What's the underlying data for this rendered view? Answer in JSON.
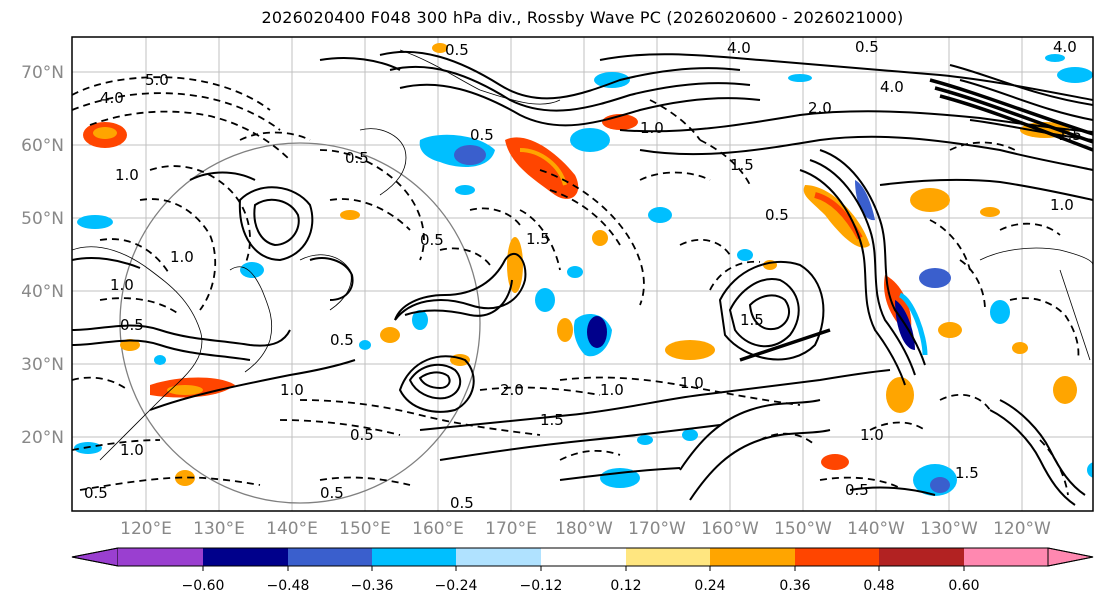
{
  "title": "2026020400 F048 300 hPa div., Rossby Wave PC (2026020600 - 2026021000)",
  "lat_labels": [
    "70°N",
    "60°N",
    "50°N",
    "40°N",
    "30°N",
    "20°N"
  ],
  "lon_labels": [
    "120°E",
    "130°E",
    "140°E",
    "150°E",
    "160°E",
    "170°E",
    "180°W",
    "170°W",
    "160°W",
    "150°W",
    "140°W",
    "130°W",
    "120°W"
  ],
  "colorbar": {
    "tick_labels": [
      "−0.60",
      "−0.48",
      "−0.36",
      "−0.24",
      "−0.12",
      "0.12",
      "0.24",
      "0.36",
      "0.48",
      "0.60"
    ],
    "colors": [
      "#9a3fd0",
      "#00008b",
      "#3a5fcd",
      "#00bfff",
      "#b0e2ff",
      "#ffffff",
      "#ffe680",
      "#ffa500",
      "#ff4500",
      "#b22222",
      "#ff88b0"
    ]
  },
  "contour_labels": [
    "0.5",
    "4.0",
    "0.5",
    "4.0",
    "4.0",
    "5.0",
    "4.0",
    "0.5",
    "1.0",
    "1.5",
    "0.5",
    "1.0",
    "1.0",
    "1.5",
    "2.0",
    "1.5",
    "1.0",
    "0.5",
    "0.5",
    "1.0",
    "0.5",
    "1.5",
    "1.0",
    "2.0",
    "1.0",
    "0.5",
    "1.0",
    "1.5",
    "0.5",
    "0.5",
    "1.0",
    "0.5",
    "1.5",
    "1.0",
    "0.5",
    "0.5"
  ]
}
